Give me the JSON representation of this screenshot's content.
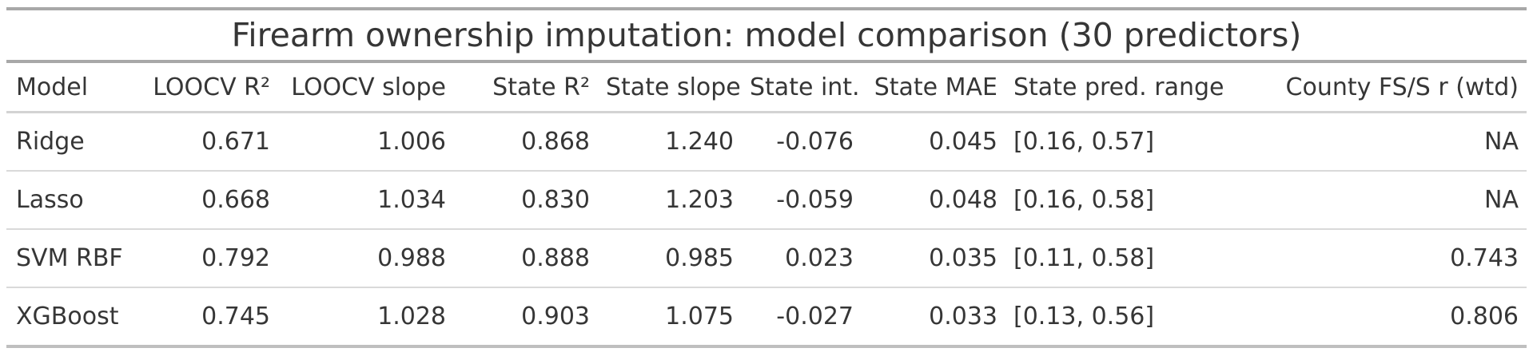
{
  "chart_data": {
    "type": "table",
    "title": "Firearm ownership imputation: model comparison (30 predictors)",
    "columns": [
      "Model",
      "LOOCV R²",
      "LOOCV slope",
      "State R²",
      "State slope",
      "State int.",
      "State MAE",
      "State pred. range",
      "County FS/S r (wtd)"
    ],
    "rows": [
      [
        "Ridge",
        "0.671",
        "1.006",
        "0.868",
        "1.240",
        "-0.076",
        "0.045",
        "[0.16, 0.57]",
        "NA"
      ],
      [
        "Lasso",
        "0.668",
        "1.034",
        "0.830",
        "1.203",
        "-0.059",
        "0.048",
        "[0.16, 0.58]",
        "NA"
      ],
      [
        "SVM RBF",
        "0.792",
        "0.988",
        "0.888",
        "0.985",
        "0.023",
        "0.035",
        "[0.11, 0.58]",
        "0.743"
      ],
      [
        "XGBoost",
        "0.745",
        "1.028",
        "0.903",
        "1.075",
        "-0.027",
        "0.033",
        "[0.13, 0.56]",
        "0.806"
      ]
    ],
    "layout": {
      "title_position": "top-center",
      "numeric_alignment": "right",
      "grid": "horizontal-rules-only"
    },
    "colors": {
      "heavy_rule": "#a8a8a8",
      "header_rule": "#d3d3d3",
      "row_rule": "#d9d9d9",
      "bottom_rule": "#bfbfbf",
      "text": "#363636",
      "background": "#ffffff"
    }
  }
}
